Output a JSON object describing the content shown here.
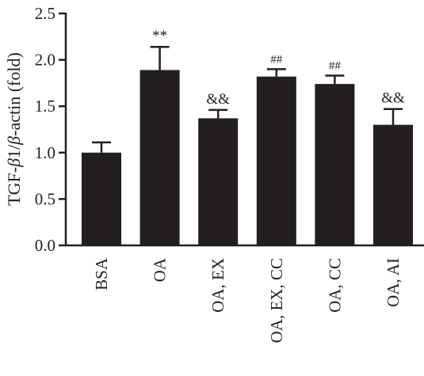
{
  "chart_data": {
    "type": "bar",
    "ylabel_parts": [
      "TGF-",
      "β",
      "1/",
      "β",
      "-actin (fold)"
    ],
    "ylim": [
      0,
      2.5
    ],
    "yticks": [
      "0.0",
      "0.5",
      "1.0",
      "1.5",
      "2.0",
      "2.5"
    ],
    "categories": [
      "BSA",
      "OA",
      "OA, EX",
      "OA, EX, CC",
      "OA, CC",
      "OA, AI"
    ],
    "values": [
      1.0,
      1.89,
      1.37,
      1.82,
      1.74,
      1.3
    ],
    "errors": [
      0.11,
      0.25,
      0.09,
      0.08,
      0.09,
      0.17
    ],
    "annotations": [
      "",
      "**",
      "&&",
      "##",
      "##",
      "&&"
    ],
    "bar_color": "#231f20"
  }
}
